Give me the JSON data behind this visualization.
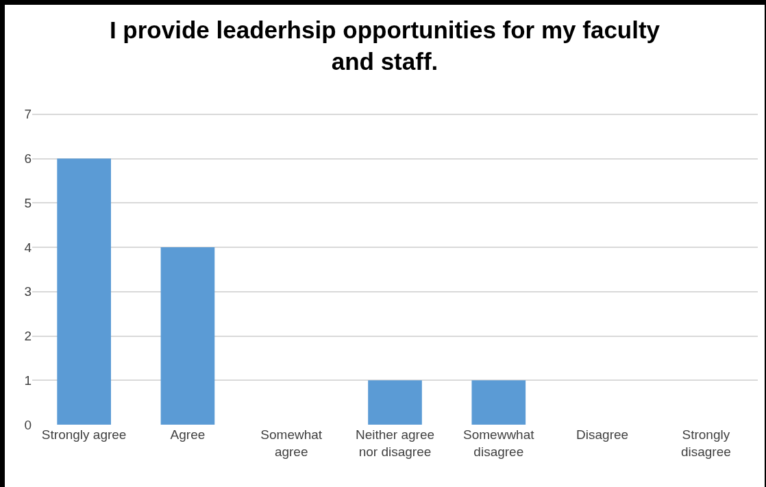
{
  "chart_data": {
    "type": "bar",
    "title": "I provide leaderhsip opportunities for my faculty\nand staff.",
    "categories": [
      "Strongly agree",
      "Agree",
      "Somewhat\nagree",
      "Neither agree\nnor disagree",
      "Somewwhat\ndisagree",
      "Disagree",
      "Strongly\ndisagree"
    ],
    "values": [
      6,
      4,
      0,
      1,
      1,
      0,
      0
    ],
    "color": "#5b9bd5",
    "ylim": [
      0,
      7
    ],
    "yticks": [
      0,
      1,
      2,
      3,
      4,
      5,
      6,
      7
    ],
    "grid": "y"
  }
}
